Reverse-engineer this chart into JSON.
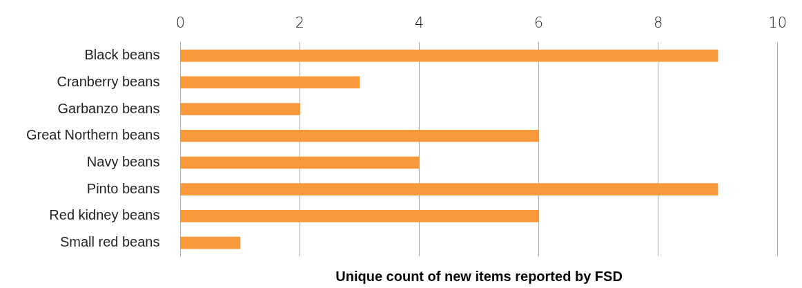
{
  "chart_data": {
    "type": "bar",
    "orientation": "horizontal",
    "xlabel": "Unique count of new items reported by FSD",
    "categories": [
      "Black beans",
      "Cranberry beans",
      "Garbanzo beans",
      "Great Northern beans",
      "Navy beans",
      "Pinto beans",
      "Red kidney beans",
      "Small red beans"
    ],
    "values": [
      9,
      3,
      2,
      6,
      4,
      9,
      6,
      1
    ],
    "color": "#f7993a",
    "xlim": [
      0,
      10
    ],
    "xticks": [
      0,
      2,
      4,
      6,
      8,
      10
    ],
    "grid": "x",
    "legend": false
  }
}
